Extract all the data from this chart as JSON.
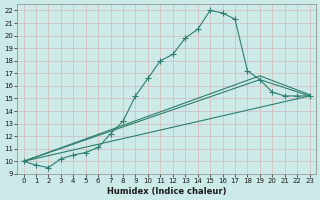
{
  "xlabel": "Humidex (Indice chaleur)",
  "bg_color": "#cceae7",
  "grid_color": "#b8d8d4",
  "line_color": "#2e7d6e",
  "xlim": [
    -0.5,
    23.5
  ],
  "ylim": [
    9,
    22.5
  ],
  "xticks": [
    0,
    1,
    2,
    3,
    4,
    5,
    6,
    7,
    8,
    9,
    10,
    11,
    12,
    13,
    14,
    15,
    16,
    17,
    18,
    19,
    20,
    21,
    22,
    23
  ],
  "yticks": [
    9,
    10,
    11,
    12,
    13,
    14,
    15,
    16,
    17,
    18,
    19,
    20,
    21,
    22
  ],
  "main_x": [
    0,
    1,
    2,
    3,
    4,
    5,
    6,
    7,
    8,
    9,
    10,
    11,
    12,
    13,
    14,
    15,
    16,
    17,
    18,
    19,
    20,
    21,
    22,
    23
  ],
  "main_y": [
    10,
    9.7,
    9.5,
    10.2,
    10.5,
    10.7,
    11.1,
    12.2,
    13.2,
    15.2,
    16.6,
    18.0,
    18.5,
    19.8,
    20.5,
    22.0,
    21.8,
    21.3,
    17.2,
    16.5,
    15.5,
    15.2,
    15.2,
    15.2
  ],
  "line2_x": [
    0,
    23
  ],
  "line2_y": [
    10,
    15.2
  ],
  "line3_x": [
    0,
    19,
    23
  ],
  "line3_y": [
    10,
    16.5,
    15.2
  ],
  "line4_x": [
    0,
    19,
    23
  ],
  "line4_y": [
    10,
    16.8,
    15.3
  ]
}
